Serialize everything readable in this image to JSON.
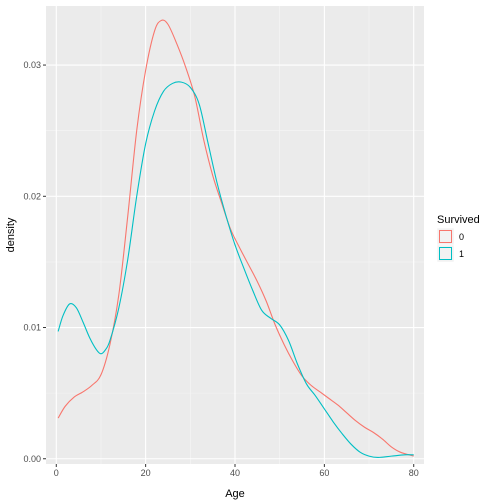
{
  "chart_data": {
    "type": "line",
    "title": "",
    "xlabel": "Age",
    "ylabel": "density",
    "xlim": [
      -2.3,
      82.3
    ],
    "ylim": [
      -0.0004,
      0.0345
    ],
    "x_ticks": [
      0,
      20,
      40,
      60,
      80
    ],
    "x_tick_labels": [
      "0",
      "20",
      "40",
      "60",
      "80"
    ],
    "y_ticks": [
      0.0,
      0.01,
      0.02,
      0.03
    ],
    "y_tick_labels": [
      "0.00",
      "0.01",
      "0.02",
      "0.03"
    ],
    "grid": true,
    "legend": {
      "title": "Survived",
      "placement": "right"
    },
    "series": [
      {
        "name": "0",
        "color": "#F8766D",
        "points": [
          [
            0.42,
            0.0031
          ],
          [
            2,
            0.004
          ],
          [
            4,
            0.0047
          ],
          [
            6,
            0.0051
          ],
          [
            8,
            0.0056
          ],
          [
            10,
            0.0064
          ],
          [
            12,
            0.0087
          ],
          [
            14,
            0.0125
          ],
          [
            16,
            0.0185
          ],
          [
            18,
            0.025
          ],
          [
            20,
            0.0296
          ],
          [
            22,
            0.0326
          ],
          [
            23.5,
            0.0334
          ],
          [
            25,
            0.0331
          ],
          [
            27,
            0.0316
          ],
          [
            29,
            0.0298
          ],
          [
            31,
            0.0276
          ],
          [
            33,
            0.0243
          ],
          [
            35,
            0.0216
          ],
          [
            37,
            0.0195
          ],
          [
            39,
            0.0175
          ],
          [
            41,
            0.0161
          ],
          [
            43,
            0.0148
          ],
          [
            45,
            0.0135
          ],
          [
            47,
            0.012
          ],
          [
            49,
            0.0102
          ],
          [
            51,
            0.0087
          ],
          [
            53,
            0.0074
          ],
          [
            55,
            0.0063
          ],
          [
            57,
            0.0056
          ],
          [
            59,
            0.0051
          ],
          [
            61,
            0.0046
          ],
          [
            63,
            0.0041
          ],
          [
            65,
            0.0035
          ],
          [
            67,
            0.0029
          ],
          [
            69,
            0.0024
          ],
          [
            71,
            0.002
          ],
          [
            73,
            0.0015
          ],
          [
            75,
            0.0009
          ],
          [
            77,
            0.0005
          ],
          [
            80,
            0.0002
          ]
        ]
      },
      {
        "name": "1",
        "color": "#00BFC4",
        "points": [
          [
            0.42,
            0.0097
          ],
          [
            1.5,
            0.0109
          ],
          [
            3,
            0.0118
          ],
          [
            4.5,
            0.0115
          ],
          [
            6,
            0.0104
          ],
          [
            7.5,
            0.0092
          ],
          [
            9,
            0.0083
          ],
          [
            10,
            0.008
          ],
          [
            11,
            0.0083
          ],
          [
            12,
            0.009
          ],
          [
            14,
            0.0115
          ],
          [
            16,
            0.0152
          ],
          [
            18,
            0.02
          ],
          [
            20,
            0.024
          ],
          [
            22,
            0.0265
          ],
          [
            24,
            0.028
          ],
          [
            26,
            0.0286
          ],
          [
            28,
            0.0287
          ],
          [
            30,
            0.0283
          ],
          [
            32,
            0.027
          ],
          [
            34,
            0.024
          ],
          [
            36,
            0.021
          ],
          [
            38,
            0.0185
          ],
          [
            40,
            0.0163
          ],
          [
            42,
            0.0145
          ],
          [
            44,
            0.0128
          ],
          [
            46,
            0.0113
          ],
          [
            48,
            0.0107
          ],
          [
            50,
            0.0102
          ],
          [
            52,
            0.009
          ],
          [
            54,
            0.0072
          ],
          [
            56,
            0.0057
          ],
          [
            58,
            0.0048
          ],
          [
            60,
            0.0038
          ],
          [
            62,
            0.0028
          ],
          [
            64,
            0.0019
          ],
          [
            66,
            0.0011
          ],
          [
            68,
            0.0005
          ],
          [
            70,
            0.0002
          ],
          [
            72,
            0.0001
          ],
          [
            75,
            0.0002
          ],
          [
            78,
            0.0003
          ],
          [
            80,
            0.0003
          ]
        ]
      }
    ]
  }
}
